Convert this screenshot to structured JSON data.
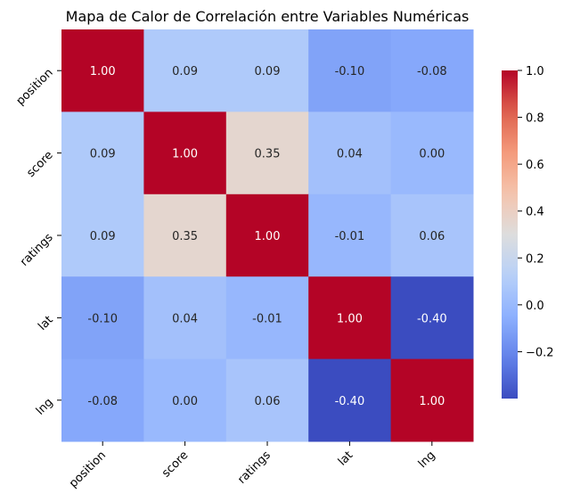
{
  "chart_data": {
    "type": "heatmap",
    "title": "Mapa de Calor de Correlación entre Variables Numéricas",
    "rows": [
      "position",
      "score",
      "ratings",
      "lat",
      "lng"
    ],
    "columns": [
      "position",
      "score",
      "ratings",
      "lat",
      "lng"
    ],
    "values": [
      [
        1.0,
        0.09,
        0.09,
        -0.1,
        -0.08
      ],
      [
        0.09,
        1.0,
        0.35,
        0.04,
        0.0
      ],
      [
        0.09,
        0.35,
        1.0,
        -0.01,
        0.06
      ],
      [
        -0.1,
        0.04,
        -0.01,
        1.0,
        -0.4
      ],
      [
        -0.08,
        0.0,
        0.06,
        -0.4,
        1.0
      ]
    ],
    "value_format": "0.00",
    "colormap": "coolwarm",
    "colorbar": {
      "min": -0.4,
      "max": 1.0,
      "ticks": [
        -0.2,
        0.0,
        0.2,
        0.4,
        0.6,
        0.8,
        1.0
      ],
      "tick_labels": [
        "−0.2",
        "0.0",
        "0.2",
        "0.4",
        "0.6",
        "0.8",
        "1.0"
      ]
    }
  }
}
